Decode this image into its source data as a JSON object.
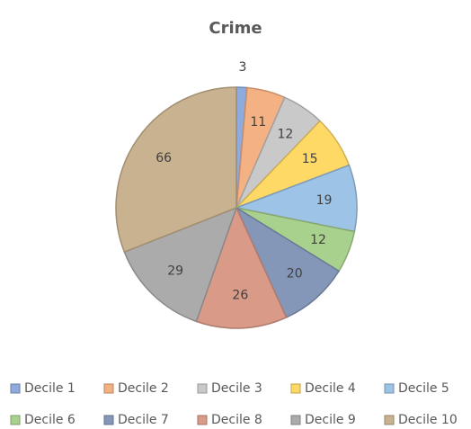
{
  "chart_data": {
    "type": "pie",
    "title": "Crime",
    "categories": [
      "Decile 1",
      "Decile 2",
      "Decile 3",
      "Decile 4",
      "Decile 5",
      "Decile 6",
      "Decile 7",
      "Decile 8",
      "Decile 9",
      "Decile 10"
    ],
    "values": [
      3,
      11,
      12,
      15,
      19,
      12,
      20,
      26,
      29,
      66
    ],
    "colors": [
      "#8faadc",
      "#f4b183",
      "#c9c9c9",
      "#ffd966",
      "#9dc3e6",
      "#a9d18e",
      "#8497b9",
      "#d99a88",
      "#ababab",
      "#c9b28f"
    ],
    "legend": "bottom"
  }
}
